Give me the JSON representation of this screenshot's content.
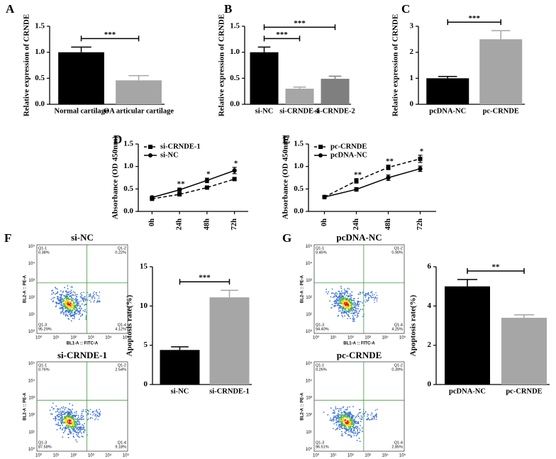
{
  "chart_data": [
    {
      "type": "bar",
      "panel": "A",
      "ylabel": "Relative expression of CRNDE",
      "categories": [
        "Normal cartilage",
        "OA articular cartilage"
      ],
      "values": [
        1.0,
        0.46
      ],
      "errors": [
        0.1,
        0.09
      ],
      "colors": [
        "#000000",
        "#a6a6a6"
      ],
      "ylim": [
        0,
        1.5
      ],
      "yticks": [
        {
          "value": 0,
          "label": "0.0"
        },
        0.5,
        {
          "value": 1,
          "label": "1.0"
        },
        1.5
      ],
      "annotations": [
        {
          "text": "***",
          "between": [
            "Normal cartilage",
            "OA articular cartilage"
          ]
        }
      ]
    },
    {
      "type": "bar",
      "panel": "B",
      "ylabel": "Relative expression of CRNDE",
      "categories": [
        "si-NC",
        "si-CRNDE-1",
        "si-CRNDE-2"
      ],
      "values": [
        1.0,
        0.3,
        0.49
      ],
      "errors": [
        0.1,
        0.03,
        0.05
      ],
      "colors": [
        "#000000",
        "#a6a6a6",
        "#7f7f7f"
      ],
      "ylim": [
        0,
        1.5
      ],
      "yticks": [
        {
          "value": 0,
          "label": "0.0"
        },
        0.5,
        {
          "value": 1,
          "label": "1.0"
        },
        1.5
      ],
      "annotations": [
        {
          "text": "***",
          "between": [
            "si-NC",
            "si-CRNDE-2"
          ]
        },
        {
          "text": "***",
          "between": [
            "si-NC",
            "si-CRNDE-1"
          ]
        }
      ]
    },
    {
      "type": "bar",
      "panel": "C",
      "ylabel": "Relative expression of CRNDE",
      "categories": [
        "pcDNA-NC",
        "pc-CRNDE"
      ],
      "values": [
        1.0,
        2.5
      ],
      "errors": [
        0.07,
        0.33
      ],
      "colors": [
        "#000000",
        "#a6a6a6"
      ],
      "ylim": [
        0,
        3
      ],
      "yticks": [
        0,
        1,
        2,
        3
      ],
      "annotations": [
        {
          "text": "***",
          "between": [
            "pcDNA-NC",
            "pc-CRNDE"
          ]
        }
      ]
    },
    {
      "type": "line",
      "panel": "D",
      "ylabel": "Absorbance (OD 450nm)",
      "categories": [
        "0h",
        "24h",
        "48h",
        "72h"
      ],
      "series": [
        {
          "name": "si-CRNDE-1",
          "color": "#000000",
          "dash": true,
          "marker": "square",
          "values": [
            0.28,
            0.38,
            0.53,
            0.72
          ],
          "errors": [
            0.02,
            0.02,
            0.03,
            0.03
          ]
        },
        {
          "name": "si-NC",
          "color": "#000000",
          "dash": false,
          "marker": "circle",
          "values": [
            0.31,
            0.48,
            0.69,
            0.91
          ],
          "errors": [
            0.03,
            0.04,
            0.05,
            0.07
          ]
        }
      ],
      "ylim": [
        0,
        1.5
      ],
      "yticks": [
        {
          "value": 0,
          "label": "0.0"
        },
        0.5,
        {
          "value": 1,
          "label": "1.0"
        },
        1.5
      ],
      "legend": "upper left",
      "annotations": [
        {
          "text": "**",
          "at": "24h"
        },
        {
          "text": "*",
          "at": "48h"
        },
        {
          "text": "*",
          "at": "72h"
        }
      ]
    },
    {
      "type": "line",
      "panel": "E",
      "ylabel": "Absorbance (OD 450nm)",
      "categories": [
        "0h",
        "24h",
        "48h",
        "72h"
      ],
      "series": [
        {
          "name": "pc-CRNDE",
          "color": "#000000",
          "dash": true,
          "marker": "square",
          "values": [
            0.32,
            0.68,
            0.98,
            1.17
          ],
          "errors": [
            0.03,
            0.05,
            0.05,
            0.08
          ]
        },
        {
          "name": "pcDNA-NC",
          "color": "#000000",
          "dash": false,
          "marker": "circle",
          "values": [
            0.32,
            0.49,
            0.75,
            0.95
          ],
          "errors": [
            0.03,
            0.04,
            0.06,
            0.06
          ]
        }
      ],
      "ylim": [
        0,
        1.5
      ],
      "yticks": [
        {
          "value": 0,
          "label": "0.0"
        },
        0.5,
        {
          "value": 1,
          "label": "1.0"
        },
        1.5
      ],
      "legend": "upper left",
      "annotations": [
        {
          "text": "**",
          "at": "24h"
        },
        {
          "text": "**",
          "at": "48h"
        },
        {
          "text": "*",
          "at": "72h"
        }
      ]
    },
    {
      "type": "flow",
      "title": "si-NC",
      "xlabel": "BL1-A :: FITC-A",
      "ylabel": "BL2-A :: PE-A",
      "ticks": [
        "10⁰",
        "10¹",
        "10²",
        "10³",
        "10⁴",
        "10⁵"
      ],
      "quadrants": [
        "Q1-1",
        "Q1-2",
        "Q1-3",
        "Q1-4"
      ],
      "values": [
        0.38,
        0.22,
        95.29,
        4.12
      ],
      "value_labels": [
        "0.38%",
        "0.22%",
        "95.29%",
        "4.12%"
      ]
    },
    {
      "type": "flow",
      "title": "si-CRNDE-1",
      "xlabel": "BL1-A :: FITC-A",
      "ylabel": "BL2-A :: PE-A",
      "ticks": [
        "10⁰",
        "10¹",
        "10²",
        "10³",
        "10⁴",
        "10⁵"
      ],
      "quadrants": [
        "Q1-1",
        "Q1-2",
        "Q1-3",
        "Q1-4"
      ],
      "values": [
        0.76,
        2.54,
        87.58,
        9.18
      ],
      "value_labels": [
        "0.76%",
        "2.54%",
        "87.58%",
        "9.18%"
      ]
    },
    {
      "type": "bar",
      "panel": "F",
      "ylabel": "Apoptosis rate(%)",
      "categories": [
        "si-NC",
        "si-CRNDE-1"
      ],
      "values": [
        4.4,
        11.1
      ],
      "errors": [
        0.4,
        0.9
      ],
      "colors": [
        "#000000",
        "#a6a6a6"
      ],
      "ylim": [
        0,
        15
      ],
      "yticks": [
        0,
        5,
        10,
        15
      ],
      "annotations": [
        {
          "text": "***",
          "between": [
            "si-NC",
            "si-CRNDE-1"
          ]
        }
      ]
    },
    {
      "type": "flow",
      "title": "pcDNA-NC",
      "xlabel": "BL1-A :: FITC-A",
      "ylabel": "BL2-A :: PE-A",
      "ticks": [
        "10⁰",
        "10¹",
        "10²",
        "10³",
        "10⁴",
        "10⁵"
      ],
      "quadrants": [
        "Q1-1",
        "Q1-2",
        "Q1-3",
        "Q1-4"
      ],
      "values": [
        0.45,
        0.9,
        94.4,
        4.25
      ],
      "value_labels": [
        "0.45%",
        "0.90%",
        "94.40%",
        "4.25%"
      ]
    },
    {
      "type": "flow",
      "title": "pc-CRNDE",
      "xlabel": "BL1-A :: FITC-A",
      "ylabel": "BL2-A :: PE-A",
      "ticks": [
        "10⁰",
        "10¹",
        "10²",
        "10³",
        "10⁴",
        "10⁵"
      ],
      "quadrants": [
        "Q1-1",
        "Q1-2",
        "Q1-3",
        "Q1-4"
      ],
      "values": [
        0.26,
        0.39,
        96.51,
        2.85
      ],
      "value_labels": [
        "0.26%",
        "0.39%",
        "96.51%",
        "2.85%"
      ]
    },
    {
      "type": "bar",
      "panel": "G",
      "ylabel": "Apoptosis rate(%)",
      "categories": [
        "pcDNA-NC",
        "pc-CRNDE"
      ],
      "values": [
        5.0,
        3.4
      ],
      "errors": [
        0.35,
        0.15
      ],
      "colors": [
        "#000000",
        "#a6a6a6"
      ],
      "ylim": [
        0,
        6
      ],
      "yticks": [
        0,
        2,
        4,
        6
      ],
      "annotations": [
        {
          "text": "**",
          "between": [
            "pcDNA-NC",
            "pc-CRNDE"
          ]
        }
      ]
    }
  ]
}
